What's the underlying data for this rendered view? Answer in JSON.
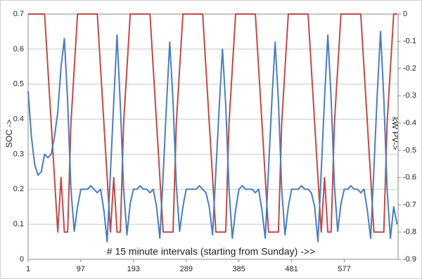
{
  "chart_data": {
    "type": "line",
    "x_label": "# 15 minute intervals (starting from Sunday) ->>",
    "y_label": "SOC ->",
    "y2_label": "kW PV->",
    "x": [
      1,
      7,
      13,
      19,
      25,
      31,
      37,
      43,
      49,
      55,
      61,
      67,
      73,
      79,
      85,
      91,
      97,
      103,
      109,
      115,
      121,
      127,
      133,
      139,
      145,
      151,
      157,
      163,
      169,
      175,
      181,
      187,
      193,
      199,
      205,
      211,
      217,
      223,
      229,
      235,
      241,
      247,
      253,
      259,
      265,
      271,
      277,
      283,
      289,
      295,
      301,
      307,
      313,
      319,
      325,
      331,
      337,
      343,
      349,
      355,
      361,
      367,
      373,
      379,
      385,
      391,
      397,
      403,
      409,
      415,
      421,
      427,
      433,
      439,
      445,
      451,
      457,
      463,
      469,
      475,
      481,
      487,
      493,
      499,
      505,
      511,
      517,
      523,
      529,
      535,
      541,
      547,
      553,
      559,
      565,
      571,
      577,
      583,
      589,
      595,
      601,
      607,
      613,
      619,
      625,
      631,
      637,
      643,
      649,
      655,
      661,
      667,
      673
    ],
    "xlim": [
      1,
      675
    ],
    "xticks": [
      1,
      97,
      193,
      289,
      385,
      481,
      577
    ],
    "ylim": [
      0,
      0.7
    ],
    "yticks": [
      0,
      0.1,
      0.2,
      0.3,
      0.4,
      0.5,
      0.6,
      0.7
    ],
    "y2lim": [
      -0.9,
      0
    ],
    "y2ticks": [
      0,
      -0.1,
      -0.2,
      -0.3,
      -0.4,
      -0.5,
      -0.6,
      -0.7,
      -0.8,
      -0.9
    ],
    "grid": true,
    "series": [
      {
        "name": "SOC",
        "color": "#4a7ebb",
        "axis": "y",
        "values": [
          0.48,
          0.35,
          0.27,
          0.24,
          0.25,
          0.3,
          0.29,
          0.3,
          0.35,
          0.42,
          0.55,
          0.63,
          0.45,
          0.2,
          0.08,
          0.15,
          0.2,
          0.2,
          0.2,
          0.21,
          0.2,
          0.19,
          0.2,
          0.14,
          0.05,
          0.25,
          0.45,
          0.64,
          0.44,
          0.2,
          0.07,
          0.16,
          0.2,
          0.2,
          0.21,
          0.2,
          0.2,
          0.19,
          0.2,
          0.15,
          0.06,
          0.24,
          0.44,
          0.62,
          0.45,
          0.21,
          0.08,
          0.15,
          0.2,
          0.2,
          0.2,
          0.2,
          0.21,
          0.2,
          0.19,
          0.15,
          0.07,
          0.25,
          0.43,
          0.6,
          0.44,
          0.2,
          0.06,
          0.14,
          0.2,
          0.21,
          0.2,
          0.2,
          0.2,
          0.19,
          0.2,
          0.14,
          0.06,
          0.26,
          0.45,
          0.62,
          0.45,
          0.2,
          0.07,
          0.15,
          0.2,
          0.2,
          0.2,
          0.21,
          0.2,
          0.2,
          0.19,
          0.15,
          0.05,
          0.25,
          0.46,
          0.64,
          0.46,
          0.21,
          0.08,
          0.16,
          0.2,
          0.2,
          0.21,
          0.2,
          0.2,
          0.19,
          0.2,
          0.14,
          0.06,
          0.26,
          0.47,
          0.65,
          0.46,
          0.2,
          0.06,
          0.15,
          0.1
        ]
      },
      {
        "name": "kW PV",
        "color": "#be4b48",
        "axis": "y2",
        "values": [
          0,
          0,
          0,
          0,
          0,
          0,
          -0.2,
          -0.4,
          -0.6,
          -0.8,
          -0.6,
          -0.8,
          -0.8,
          -0.4,
          -0.2,
          0,
          0,
          0,
          0,
          0,
          0,
          0,
          -0.2,
          -0.4,
          -0.6,
          -0.8,
          -0.6,
          -0.8,
          -0.8,
          -0.4,
          -0.2,
          0,
          0,
          0,
          0,
          0,
          0,
          0,
          -0.2,
          -0.4,
          -0.6,
          -0.8,
          -0.8,
          -0.8,
          -0.8,
          -0.4,
          -0.2,
          0,
          0,
          0,
          0,
          0,
          0,
          0,
          -0.2,
          -0.4,
          -0.6,
          -0.8,
          -0.8,
          -0.8,
          -0.8,
          -0.4,
          -0.2,
          0,
          0,
          0,
          0,
          0,
          0,
          0,
          -0.2,
          -0.4,
          -0.6,
          -0.8,
          -0.8,
          -0.8,
          -0.8,
          -0.4,
          -0.2,
          0,
          0,
          0,
          0,
          0,
          0,
          0,
          -0.2,
          -0.4,
          -0.6,
          -0.8,
          -0.6,
          -0.8,
          -0.8,
          -0.4,
          -0.2,
          0,
          0,
          0,
          0,
          0,
          0,
          0,
          -0.2,
          -0.4,
          -0.6,
          -0.8,
          -0.8,
          -0.8,
          -0.8,
          -0.4,
          -0.2,
          0,
          0
        ]
      }
    ]
  }
}
